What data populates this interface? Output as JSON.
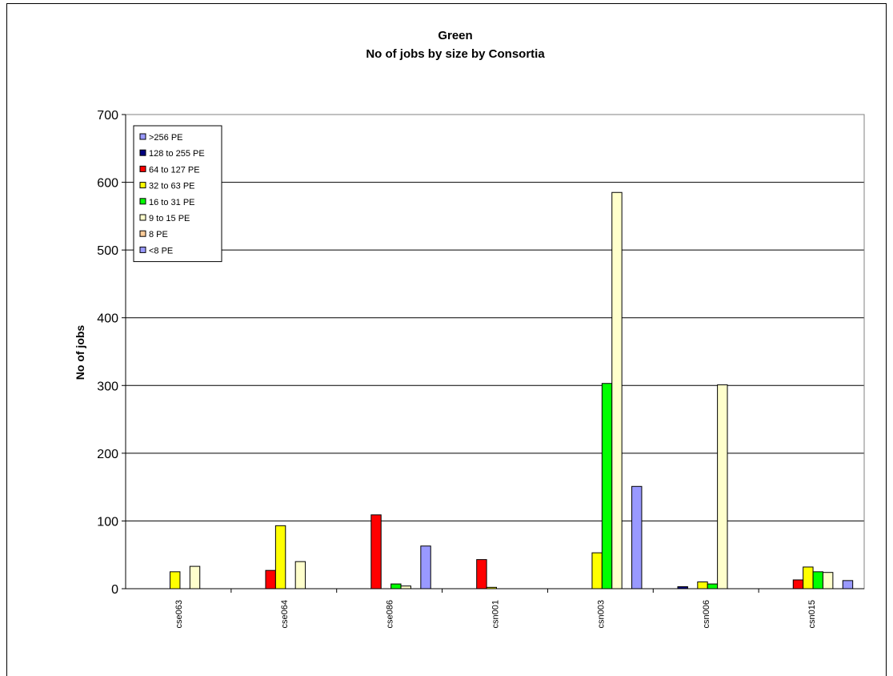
{
  "chart_data": {
    "type": "bar",
    "title": "Green",
    "subtitle": "No of jobs by size by Consortia",
    "ylabel": "No of jobs",
    "xlabel": "",
    "ylim": [
      0,
      700
    ],
    "yticks": [
      0,
      100,
      200,
      300,
      400,
      500,
      600,
      700
    ],
    "grid": true,
    "legend_position": "top-left",
    "categories": [
      "cse063",
      "cse064",
      "cse086",
      "csn001",
      "csn003",
      "csn006",
      "csn015"
    ],
    "series": [
      {
        "name": ">256 PE",
        "color": "#9999ff",
        "values": [
          0,
          0,
          0,
          0,
          0,
          0,
          0
        ]
      },
      {
        "name": "128 to 255 PE",
        "color": "#000080",
        "values": [
          0,
          0,
          0,
          0,
          0,
          3,
          0
        ]
      },
      {
        "name": "64 to 127 PE",
        "color": "#ff0000",
        "values": [
          0,
          27,
          109,
          43,
          0,
          0,
          13
        ]
      },
      {
        "name": "32 to 63 PE",
        "color": "#ffff00",
        "values": [
          25,
          93,
          0,
          2,
          53,
          10,
          32
        ]
      },
      {
        "name": "16 to 31 PE",
        "color": "#00ff00",
        "values": [
          0,
          0,
          7,
          0,
          303,
          7,
          25
        ]
      },
      {
        "name": "9 to 15 PE",
        "color": "#ffffcc",
        "values": [
          33,
          40,
          4,
          0,
          585,
          301,
          24
        ]
      },
      {
        "name": "8 PE",
        "color": "#ffcc99",
        "values": [
          0,
          0,
          0,
          0,
          0,
          0,
          0
        ]
      },
      {
        "name": "<8 PE",
        "color": "#9999ff",
        "values": [
          0,
          0,
          63,
          0,
          151,
          0,
          12
        ]
      }
    ]
  }
}
